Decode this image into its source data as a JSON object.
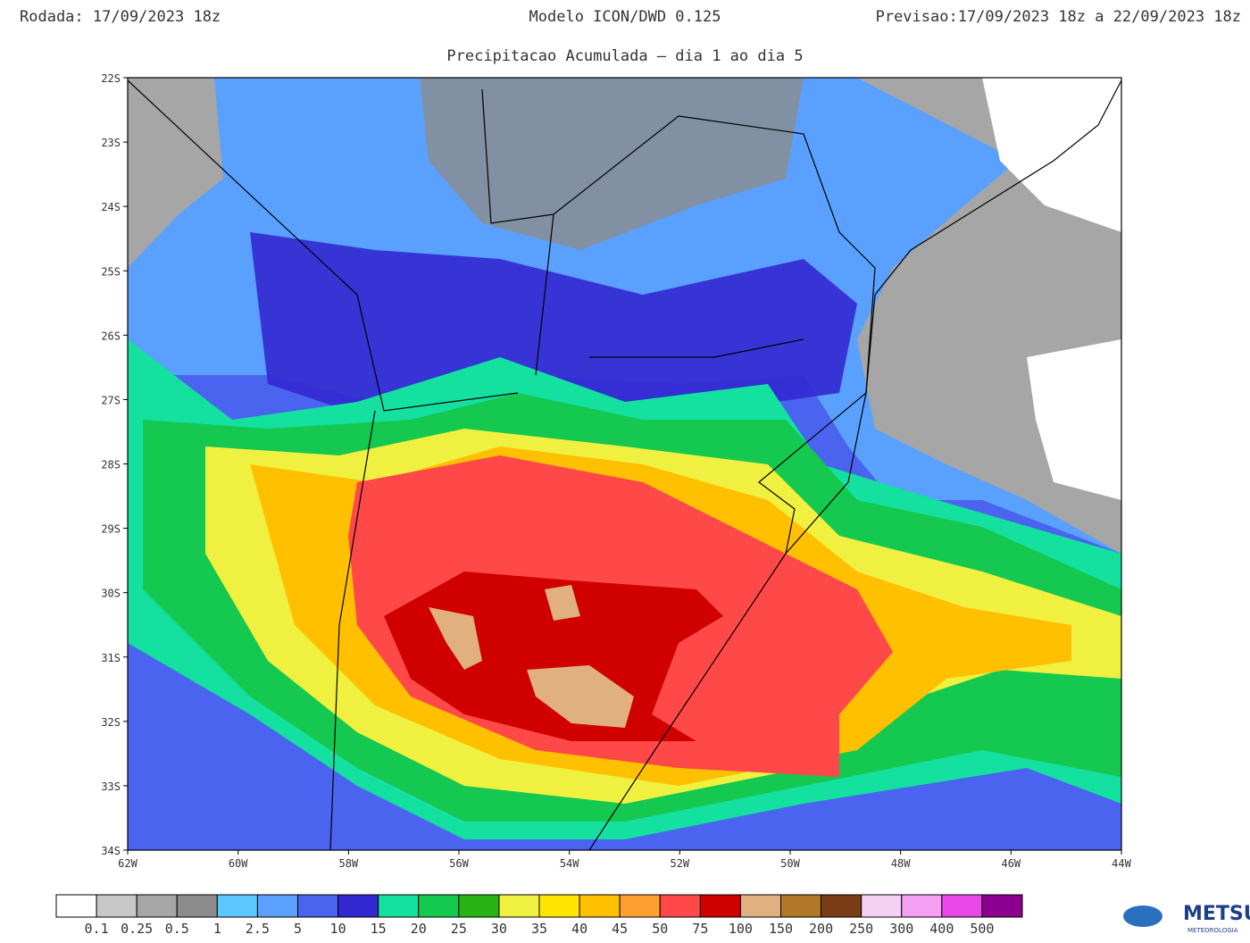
{
  "header": {
    "run": "Rodada: 17/09/2023 18z",
    "model": "Modelo ICON/DWD 0.125",
    "forecast": "Previsao:17/09/2023 18z a 22/09/2023 18z",
    "subtitle": "Precipitacao Acumulada — dia 1 ao dia 5"
  },
  "map": {
    "lat_labels": [
      "22S",
      "23S",
      "24S",
      "25S",
      "26S",
      "27S",
      "28S",
      "29S",
      "30S",
      "31S",
      "32S",
      "33S",
      "34S"
    ],
    "lon_labels": [
      "62W",
      "60W",
      "58W",
      "56W",
      "54W",
      "52W",
      "50W",
      "48W",
      "46W",
      "44W"
    ]
  },
  "legend": {
    "labels": [
      "0.1",
      "0.25",
      "0.5",
      "1",
      "2.5",
      "5",
      "10",
      "15",
      "20",
      "25",
      "30",
      "35",
      "40",
      "45",
      "50",
      "75",
      "100",
      "150",
      "200",
      "250",
      "300",
      "400",
      "500"
    ],
    "colors": [
      "#ffffff",
      "#c8c8c8",
      "#a6a6a6",
      "#8c8c8c",
      "#5cc8ff",
      "#5aa0ff",
      "#4a64f0",
      "#3228d0",
      "#14e0a0",
      "#14c850",
      "#2ab414",
      "#f0f040",
      "#ffe600",
      "#ffc000",
      "#ffa030",
      "#ff4848",
      "#d00000",
      "#e0b080",
      "#b07828",
      "#7a3c14",
      "#f5d0f5",
      "#f5a0f5",
      "#e848e8",
      "#8c0090"
    ]
  },
  "logo": {
    "name": "METSUL",
    "tagline": "METEOROLOGIA"
  }
}
